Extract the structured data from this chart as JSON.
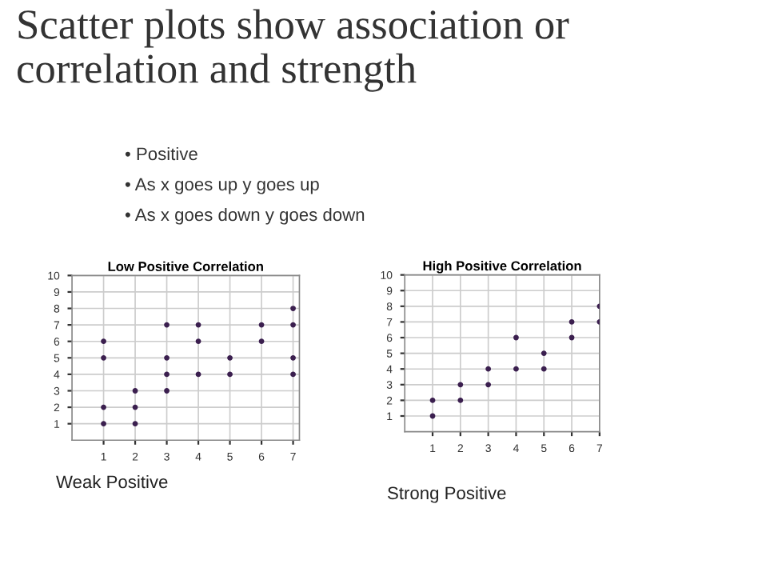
{
  "chart_data": [
    {
      "type": "scatter",
      "title": "Low Positive Correlation",
      "x": [
        1,
        1,
        1,
        1,
        2,
        2,
        2,
        3,
        3,
        3,
        3,
        4,
        4,
        4,
        5,
        5,
        6,
        6,
        7,
        7,
        7,
        7
      ],
      "values": [
        1,
        2,
        5,
        6,
        1,
        2,
        3,
        3,
        4,
        5,
        7,
        4,
        6,
        7,
        4,
        5,
        6,
        7,
        4,
        5,
        7,
        8
      ],
      "color": "#3b1f4f",
      "marker": "circle",
      "xlim": [
        0,
        7.2
      ],
      "ylim": [
        0,
        10
      ],
      "xticks": [
        1,
        2,
        3,
        4,
        5,
        6,
        7
      ],
      "yticks": [
        1,
        2,
        3,
        4,
        5,
        6,
        7,
        8,
        9,
        10
      ],
      "grid": true,
      "annotations": [
        "Scatter plots show association or correlation and strength",
        "• Positive",
        "• As x goes up y goes up",
        "• As x goes down y goes down",
        "Weak Positive"
      ]
    },
    {
      "type": "scatter",
      "title": "High Positive Correlation",
      "x": [
        1,
        1,
        2,
        2,
        3,
        3,
        4,
        4,
        5,
        5,
        6,
        6,
        7,
        7
      ],
      "values": [
        1,
        2,
        2,
        3,
        3,
        4,
        4,
        6,
        4,
        5,
        6,
        7,
        7,
        8
      ],
      "color": "#3b1f4f",
      "marker": "circle",
      "xlim": [
        0,
        7
      ],
      "ylim": [
        0,
        10
      ],
      "xticks": [
        1,
        2,
        3,
        4,
        5,
        6,
        7
      ],
      "yticks": [
        1,
        2,
        3,
        4,
        5,
        6,
        7,
        8,
        9,
        10
      ],
      "grid": true,
      "annotations": [
        "Strong Positive"
      ]
    }
  ]
}
